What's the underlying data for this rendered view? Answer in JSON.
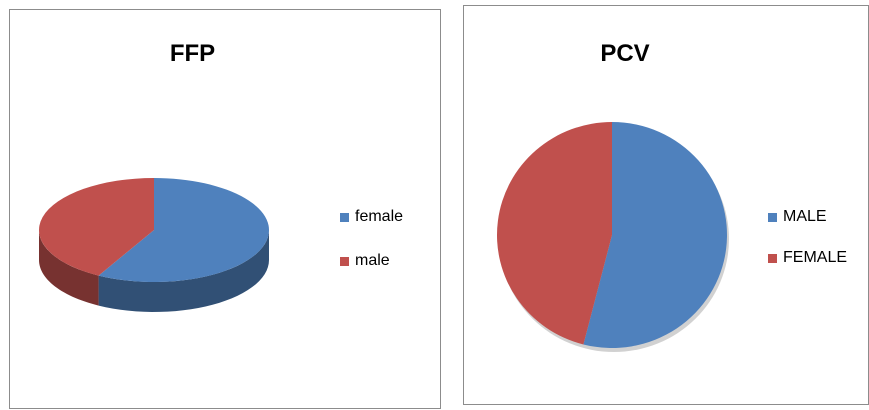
{
  "colors": {
    "blue": "#4f81bd",
    "red": "#c0504d"
  },
  "chart_data": [
    {
      "type": "pie",
      "title": "FFP",
      "style": "3d",
      "categories": [
        "female",
        "male"
      ],
      "values": [
        58,
        42
      ],
      "colors": [
        "#4f81bd",
        "#c0504d"
      ],
      "legend_position": "right"
    },
    {
      "type": "pie",
      "title": "PCV",
      "categories": [
        "MALE",
        "FEMALE"
      ],
      "values": [
        54,
        46
      ],
      "colors": [
        "#4f81bd",
        "#c0504d"
      ],
      "legend_position": "right"
    }
  ]
}
